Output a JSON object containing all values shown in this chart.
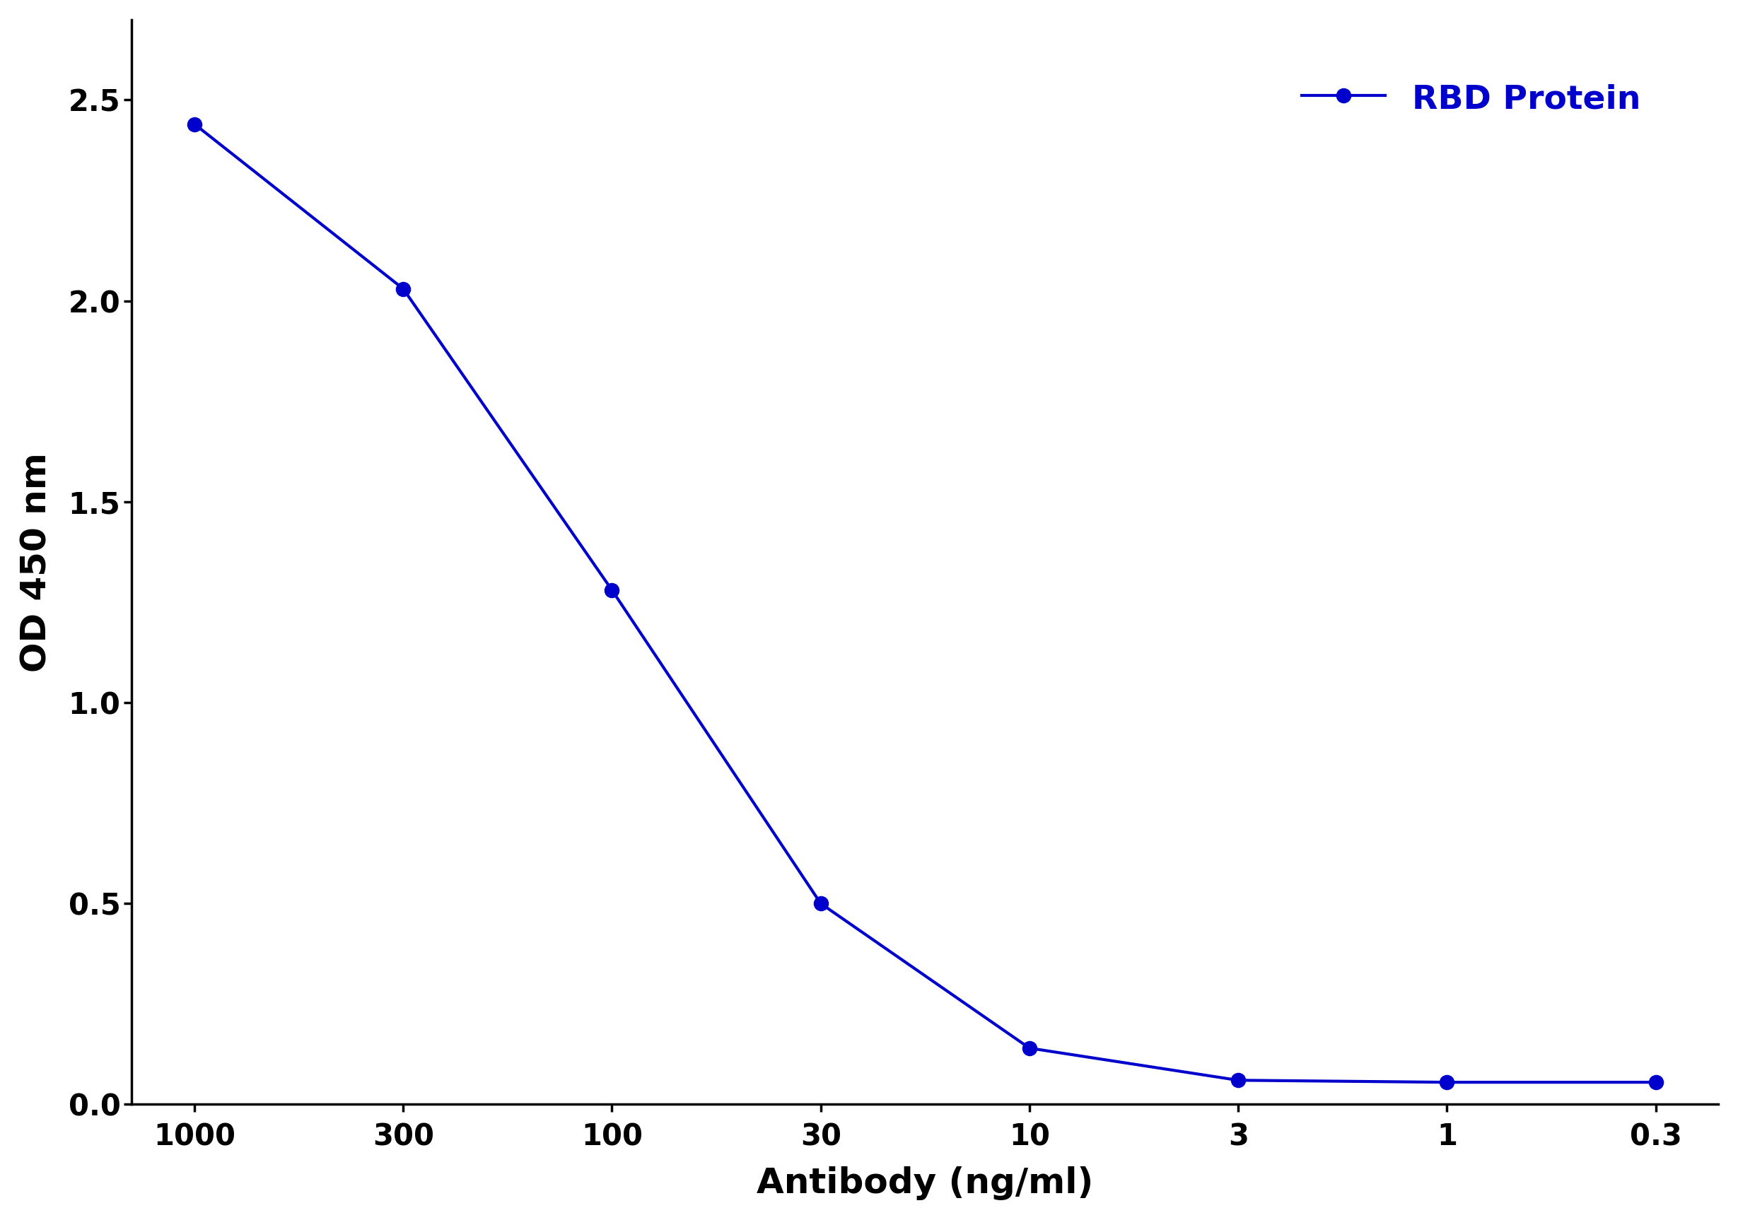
{
  "x_labels": [
    "1000",
    "300",
    "100",
    "30",
    "10",
    "3",
    "1",
    "0.3"
  ],
  "y_values": [
    2.44,
    2.03,
    1.28,
    0.5,
    0.14,
    0.06,
    0.055,
    0.055
  ],
  "line_color": "#0000CC",
  "marker": "o",
  "marker_size": 14,
  "marker_facecolor": "#0000CC",
  "marker_edgecolor": "#0000CC",
  "linewidth": 3.0,
  "ylabel": "OD 450 nm",
  "xlabel": "Antibody (ng/ml)",
  "legend_label": "RBD Protein",
  "legend_color": "#0000CC",
  "ylim": [
    0,
    2.7
  ],
  "yticks": [
    0.0,
    0.5,
    1.0,
    1.5,
    2.0,
    2.5
  ],
  "background_color": "#ffffff",
  "ylabel_fontsize": 36,
  "xlabel_fontsize": 36,
  "tick_fontsize": 30,
  "legend_fontsize": 34
}
